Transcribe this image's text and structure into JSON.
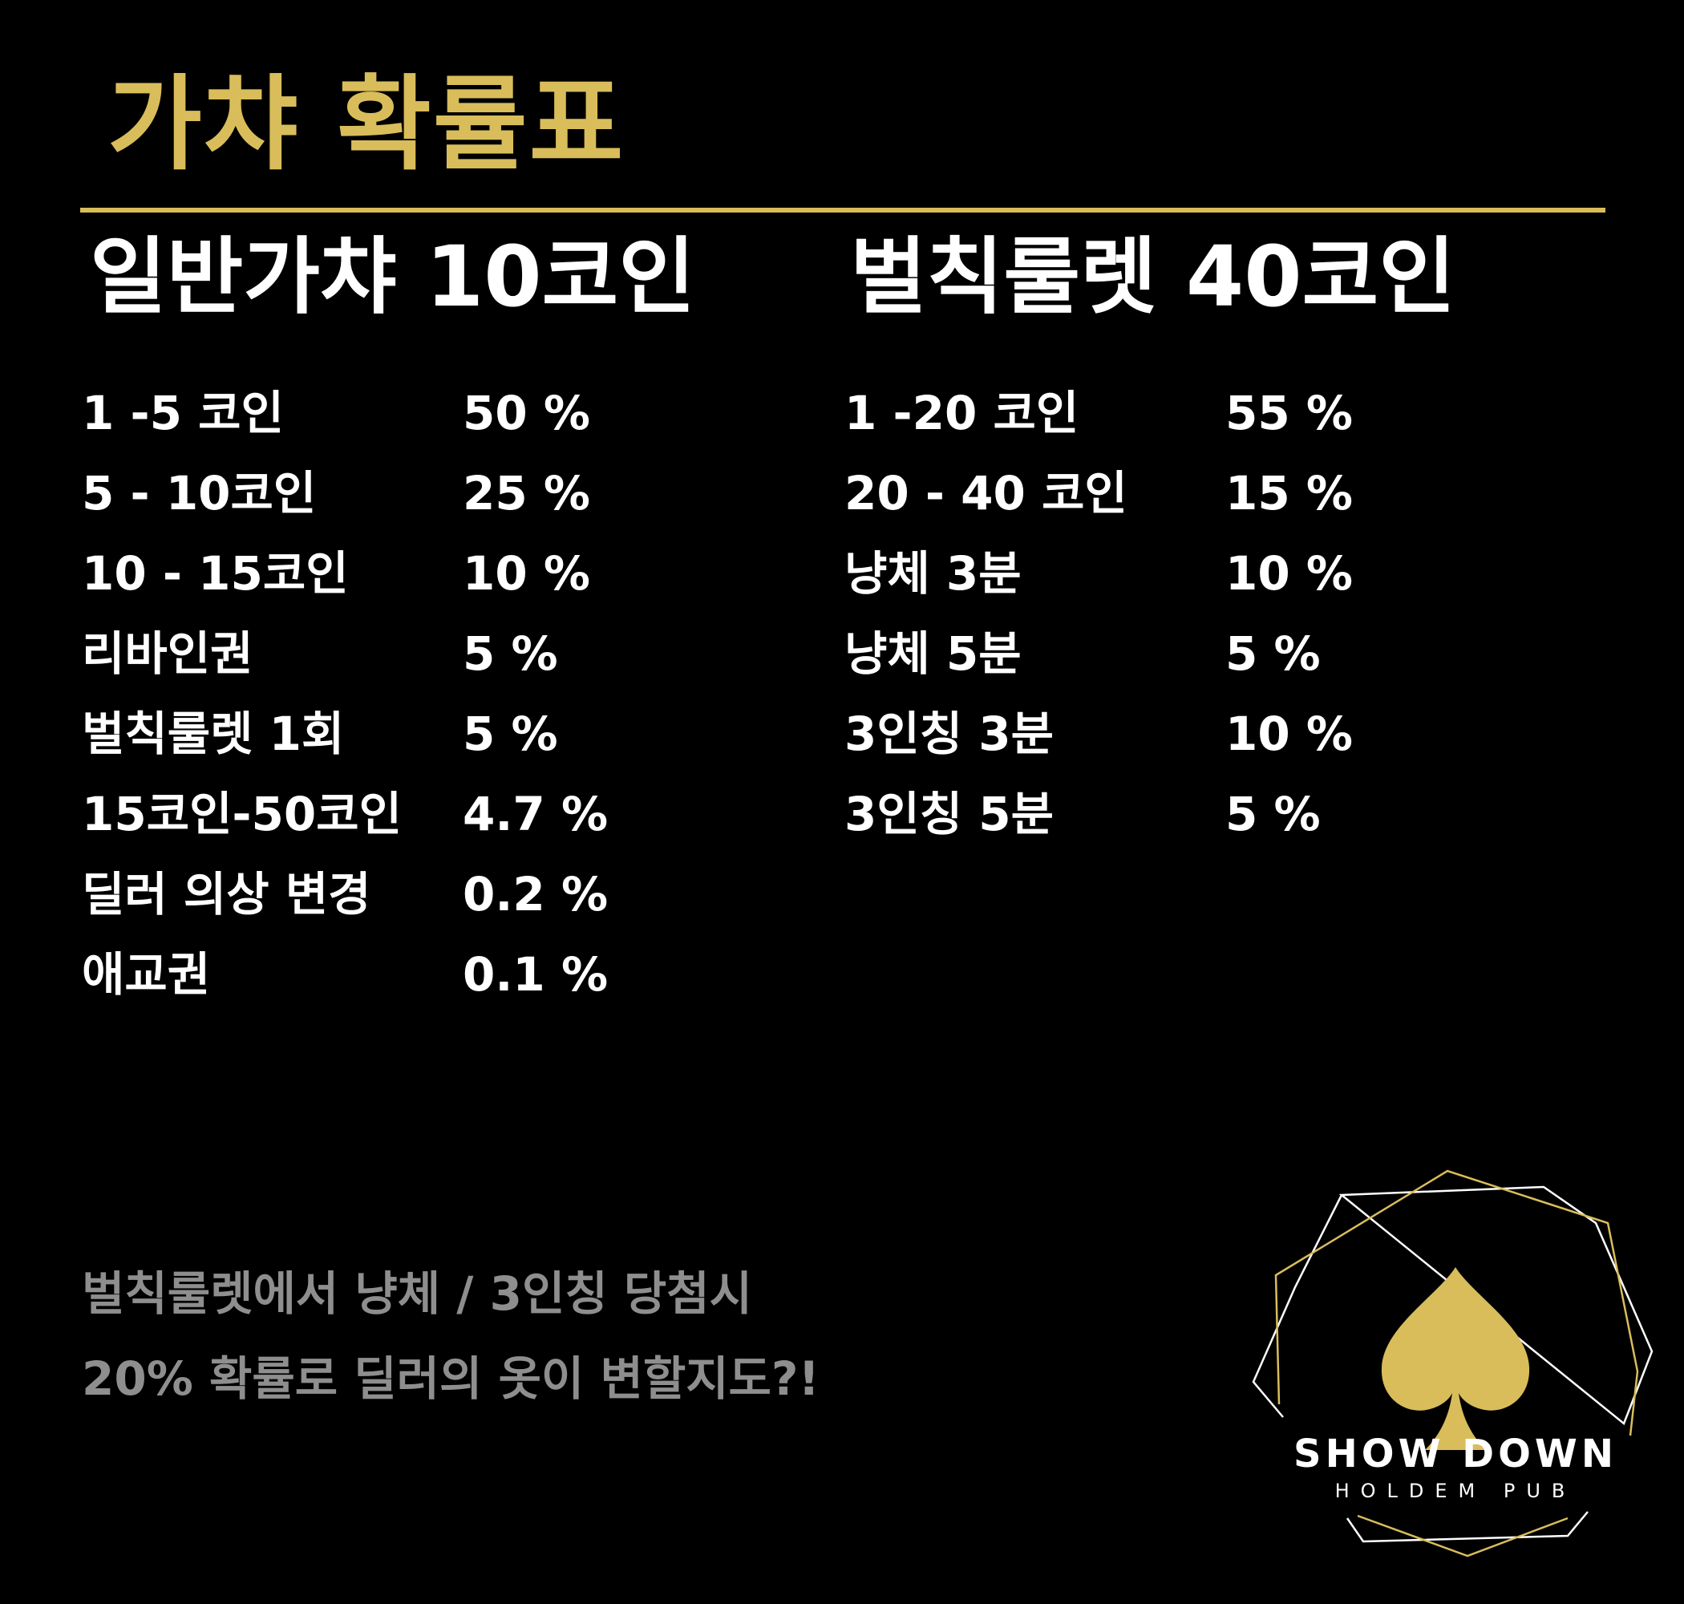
{
  "title": "가챠 확률표",
  "colors": {
    "accent_gold": "#d9bd5b",
    "background": "#000000",
    "text": "#ffffff",
    "note_gray": "#8e8e8e"
  },
  "left_section": {
    "heading": "일반가챠 10코인",
    "rows": [
      {
        "label": "1 -5 코인",
        "pct": "50 %"
      },
      {
        "label": "5 - 10코인",
        "pct": "25 %"
      },
      {
        "label": "10 - 15코인",
        "pct": "10 %"
      },
      {
        "label": "리바인권",
        "pct": "5 %"
      },
      {
        "label": "벌칙룰렛 1회",
        "pct": "5 %"
      },
      {
        "label": "15코인-50코인",
        "pct": "4.7 %"
      },
      {
        "label": "딜러 의상 변경",
        "pct": "0.2 %"
      },
      {
        "label": "애교권",
        "pct": "0.1 %"
      }
    ]
  },
  "right_section": {
    "heading": "벌칙룰렛 40코인",
    "rows": [
      {
        "label": "1 -20 코인",
        "pct": "55 %"
      },
      {
        "label": "20 - 40 코인",
        "pct": "15 %"
      },
      {
        "label": "냥체 3분",
        "pct": "10 %"
      },
      {
        "label": "냥체 5분",
        "pct": "5 %"
      },
      {
        "label": "3인칭 3분",
        "pct": "10 %"
      },
      {
        "label": "3인칭 5분",
        "pct": "5 %"
      }
    ]
  },
  "note": {
    "line1": "벌칙룰렛에서 냥체 / 3인칭 당첨시",
    "line2": "20% 확률로 딜러의 옷이 변할지도?!"
  },
  "logo": {
    "name": "SHOW DOWN",
    "sub": "HOLDEM PUB",
    "icon": "spade-icon"
  }
}
